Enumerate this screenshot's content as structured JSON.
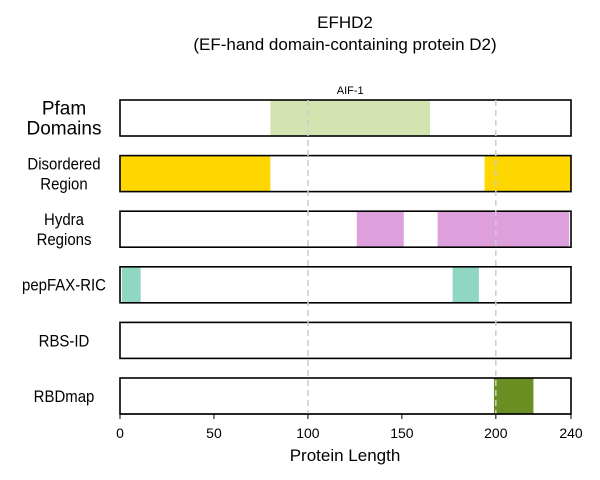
{
  "chart_data": {
    "type": "bar",
    "title": "EFHD2",
    "subtitle": "(EF-hand domain-containing protein D2)",
    "xlabel": "Protein Length",
    "xlim": [
      0,
      240
    ],
    "xticks": [
      0,
      50,
      100,
      150,
      200,
      240
    ],
    "reference_lines": [
      100,
      200
    ],
    "grid": false,
    "legend": "none",
    "tracks": [
      {
        "label": [
          "Pfam",
          "Domains"
        ],
        "color": "#d4e4b1",
        "segments": [
          {
            "start": 80,
            "end": 165,
            "label": "AIF-1"
          }
        ]
      },
      {
        "label": [
          "Disordered",
          "Region"
        ],
        "color": "#ffd700",
        "segments": [
          {
            "start": 0,
            "end": 80
          },
          {
            "start": 194,
            "end": 240
          }
        ]
      },
      {
        "label": [
          "Hydra",
          "Regions"
        ],
        "color": "#dda0dd",
        "segments": [
          {
            "start": 126,
            "end": 151
          },
          {
            "start": 169,
            "end": 239
          }
        ]
      },
      {
        "label": [
          "pepFAX-RIC"
        ],
        "color": "#8fd6c3",
        "segments": [
          {
            "start": 1,
            "end": 11
          },
          {
            "start": 177,
            "end": 191
          }
        ]
      },
      {
        "label": [
          "RBS-ID"
        ],
        "color": "#6b8e23",
        "segments": []
      },
      {
        "label": [
          "RBDmap"
        ],
        "color": "#6b8e23",
        "segments": [
          {
            "start": 199,
            "end": 220
          }
        ]
      }
    ]
  }
}
